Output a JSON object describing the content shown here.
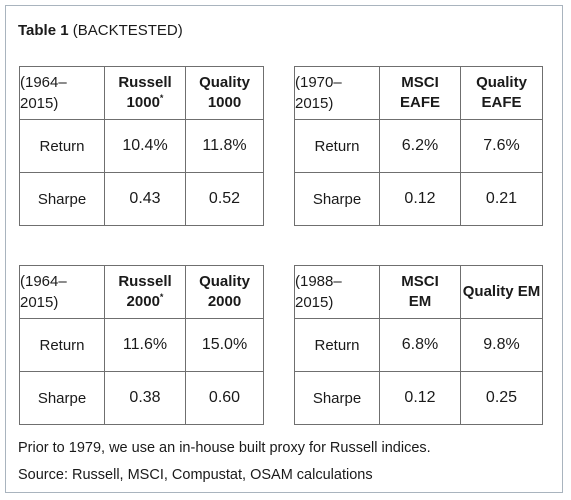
{
  "title": {
    "bold": "Table 1",
    "rest": "(BACKTESTED)"
  },
  "tables": [
    {
      "period_line1": "(1964–",
      "period_line2": "2015)",
      "col1_line1": "Russell",
      "col1_line2": "1000",
      "col1_sup": "*",
      "col2_line1": "Quality",
      "col2_line2": "1000",
      "rows": [
        {
          "label": "Return",
          "v1": "10.4%",
          "v2": "11.8%"
        },
        {
          "label": "Sharpe",
          "v1": "0.43",
          "v2": "0.52"
        }
      ]
    },
    {
      "period_line1": "(1970–",
      "period_line2": "2015)",
      "col1_line1": "",
      "col1_line2": "MSCI EAFE",
      "col2_line1": "Quality",
      "col2_line2": "EAFE",
      "rows": [
        {
          "label": "Return",
          "v1": "6.2%",
          "v2": "7.6%"
        },
        {
          "label": "Sharpe",
          "v1": "0.12",
          "v2": "0.21"
        }
      ]
    },
    {
      "period_line1": "(1964–",
      "period_line2": "2015)",
      "col1_line1": "Russell",
      "col1_line2": "2000",
      "col1_sup": "*",
      "col2_line1": "Quality",
      "col2_line2": "2000",
      "rows": [
        {
          "label": "Return",
          "v1": "11.6%",
          "v2": "15.0%"
        },
        {
          "label": "Sharpe",
          "v1": "0.38",
          "v2": "0.60"
        }
      ]
    },
    {
      "period_line1": "(1988–",
      "period_line2": "2015)",
      "col1_line1": "MSCI",
      "col1_line2": "EM",
      "col2_line1": "",
      "col2_line2": "Quality EM",
      "rows": [
        {
          "label": "Return",
          "v1": "6.8%",
          "v2": "9.8%"
        },
        {
          "label": "Sharpe",
          "v1": "0.12",
          "v2": "0.25"
        }
      ]
    }
  ],
  "notes": [
    "Prior to 1979, we use an in-house built proxy for Russell indices.",
    "Source: Russell, MSCI, Compustat, OSAM calculations"
  ]
}
